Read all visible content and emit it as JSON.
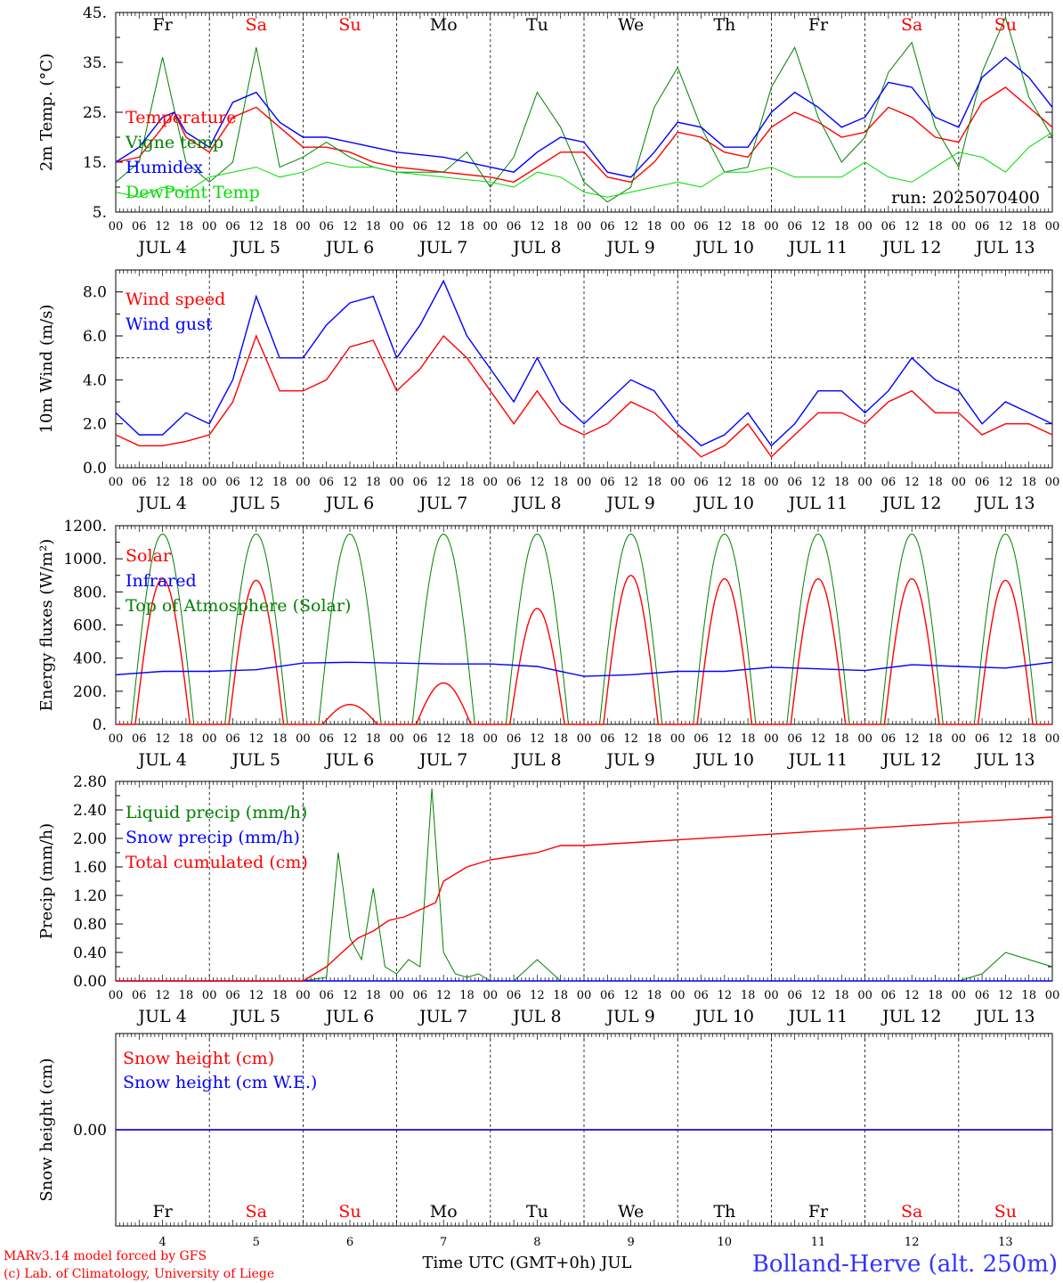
{
  "colors": {
    "red": "#ff0000",
    "blue": "#0000ff",
    "green": "#008000",
    "light_green": "#00dd00",
    "black": "#000000",
    "site_blue": "#3333ff"
  },
  "days": {
    "weekday": [
      "Fr",
      "Sa",
      "Su",
      "Mo",
      "Tu",
      "We",
      "Th",
      "Fr",
      "Sa",
      "Su"
    ],
    "weekend": [
      false,
      true,
      true,
      false,
      false,
      false,
      false,
      false,
      true,
      true
    ],
    "date_labels": [
      "JUL  4",
      "JUL  5",
      "JUL  6",
      "JUL  7",
      "JUL  8",
      "JUL  9",
      "JUL 10",
      "JUL 11",
      "JUL 12",
      "JUL 13"
    ],
    "day_numbers": [
      "4",
      "5",
      "6",
      "7",
      "8",
      "9",
      "10",
      "11",
      "12",
      "13"
    ],
    "hour_ticks": [
      "00",
      "06",
      "12",
      "18"
    ],
    "end_hour": "00"
  },
  "run_label": "run: 2025070400",
  "footer": {
    "model": "MARv3.14 model forced by GFS",
    "credit": "(c) Lab. of Climatology, University of Liege",
    "xlabel": "Time UTC (GMT+0h) JUL",
    "site": "Bolland-Herve (alt. 250m)"
  },
  "chart_data": [
    {
      "type": "line",
      "ylabel": "2m Temp. (°C)",
      "ylim": [
        5,
        45
      ],
      "yticks": [
        {
          "v": 5,
          "t": "5."
        },
        {
          "v": 15,
          "t": "15."
        },
        {
          "v": 25,
          "t": "25."
        },
        {
          "v": 35,
          "t": "35."
        },
        {
          "v": 45,
          "t": "45."
        }
      ],
      "x_unit": "hours since Jul 4 00 UTC",
      "series": [
        {
          "name": "Temperature",
          "color": "red",
          "x": [
            0,
            6,
            12,
            15,
            18,
            24,
            30,
            36,
            42,
            48,
            54,
            60,
            66,
            72,
            84,
            96,
            102,
            108,
            114,
            120,
            126,
            132,
            138,
            144,
            150,
            156,
            162,
            168,
            174,
            180,
            186,
            192,
            198,
            204,
            210,
            216,
            222,
            228,
            234,
            240
          ],
          "values": [
            15,
            16,
            22,
            25,
            20,
            17,
            24,
            26,
            22,
            18,
            18,
            17,
            15,
            14,
            13,
            12,
            11,
            14,
            17,
            17,
            12,
            11,
            15,
            21,
            20,
            17,
            16,
            22,
            25,
            23,
            20,
            21,
            26,
            24,
            20,
            19,
            27,
            30,
            26,
            22
          ]
        },
        {
          "name": "Vigne temp",
          "color": "green",
          "x": [
            0,
            6,
            12,
            18,
            24,
            30,
            36,
            42,
            48,
            54,
            60,
            66,
            72,
            84,
            90,
            96,
            102,
            108,
            114,
            120,
            126,
            132,
            138,
            144,
            150,
            156,
            162,
            168,
            174,
            180,
            186,
            192,
            198,
            204,
            210,
            216,
            222,
            228,
            234,
            240
          ],
          "values": [
            11,
            15,
            36,
            15,
            11,
            15,
            38,
            14,
            16,
            19,
            16,
            14,
            13,
            13,
            17,
            10,
            16,
            29,
            22,
            11,
            7,
            10,
            26,
            34,
            22,
            13,
            14,
            30,
            38,
            24,
            15,
            20,
            33,
            39,
            22,
            14,
            33,
            44,
            28,
            20
          ]
        },
        {
          "name": "Humidex",
          "color": "blue",
          "x": [
            0,
            6,
            12,
            15,
            18,
            24,
            30,
            36,
            42,
            48,
            54,
            60,
            66,
            72,
            84,
            96,
            102,
            108,
            114,
            120,
            126,
            132,
            138,
            144,
            150,
            156,
            162,
            168,
            174,
            180,
            186,
            192,
            198,
            204,
            210,
            216,
            222,
            228,
            234,
            240
          ],
          "values": [
            15,
            18,
            24,
            25,
            21,
            18,
            27,
            29,
            23,
            20,
            20,
            19,
            18,
            17,
            16,
            14,
            13,
            17,
            20,
            19,
            13,
            12,
            17,
            23,
            22,
            18,
            18,
            25,
            29,
            26,
            22,
            24,
            31,
            30,
            24,
            22,
            32,
            36,
            32,
            26
          ]
        },
        {
          "name": "DewPoint Temp",
          "color": "light_green",
          "x": [
            0,
            6,
            12,
            18,
            24,
            30,
            36,
            42,
            48,
            54,
            60,
            66,
            72,
            84,
            96,
            102,
            108,
            114,
            120,
            126,
            132,
            138,
            144,
            150,
            156,
            162,
            168,
            174,
            180,
            186,
            192,
            198,
            204,
            210,
            216,
            222,
            228,
            234,
            240
          ],
          "values": [
            9,
            8,
            10,
            9,
            12,
            13,
            14,
            12,
            13,
            15,
            14,
            14,
            13,
            12,
            11,
            10,
            13,
            12,
            9,
            8,
            9,
            10,
            11,
            10,
            13,
            13,
            14,
            12,
            12,
            12,
            15,
            12,
            11,
            14,
            17,
            16,
            13,
            18,
            21
          ]
        }
      ],
      "legend": [
        "Temperature",
        "Vigne temp",
        "Humidex",
        "DewPoint Temp"
      ]
    },
    {
      "type": "line",
      "ylabel": "10m Wind (m/s)",
      "ylim": [
        0,
        9
      ],
      "hline": 5,
      "yticks": [
        {
          "v": 0,
          "t": "0.0"
        },
        {
          "v": 2,
          "t": "2.0"
        },
        {
          "v": 4,
          "t": "4.0"
        },
        {
          "v": 6,
          "t": "6.0"
        },
        {
          "v": 8,
          "t": "8.0"
        }
      ],
      "series": [
        {
          "name": "Wind speed",
          "color": "red",
          "x": [
            0,
            6,
            12,
            18,
            24,
            30,
            36,
            42,
            48,
            54,
            60,
            66,
            72,
            78,
            84,
            90,
            96,
            102,
            108,
            114,
            120,
            126,
            132,
            138,
            144,
            150,
            156,
            162,
            168,
            174,
            180,
            186,
            192,
            198,
            204,
            210,
            216,
            222,
            228,
            234,
            240
          ],
          "values": [
            1.5,
            1.0,
            1.0,
            1.2,
            1.5,
            3.0,
            6.0,
            3.5,
            3.5,
            4.0,
            5.5,
            5.8,
            3.5,
            4.5,
            6.0,
            5.0,
            3.5,
            2.0,
            3.5,
            2.0,
            1.5,
            2.0,
            3.0,
            2.5,
            1.5,
            0.5,
            1.0,
            2.0,
            0.5,
            1.5,
            2.5,
            2.5,
            2.0,
            3.0,
            3.5,
            2.5,
            2.5,
            1.5,
            2.0,
            2.0,
            1.5
          ]
        },
        {
          "name": "Wind gust",
          "color": "blue",
          "x": [
            0,
            6,
            12,
            18,
            24,
            30,
            36,
            42,
            48,
            54,
            60,
            66,
            72,
            78,
            84,
            90,
            96,
            102,
            108,
            114,
            120,
            126,
            132,
            138,
            144,
            150,
            156,
            162,
            168,
            174,
            180,
            186,
            192,
            198,
            204,
            210,
            216,
            222,
            228,
            234,
            240
          ],
          "values": [
            2.5,
            1.5,
            1.5,
            2.5,
            2.0,
            4.0,
            7.8,
            5.0,
            5.0,
            6.5,
            7.5,
            7.8,
            5.0,
            6.5,
            8.5,
            6.0,
            4.5,
            3.0,
            5.0,
            3.0,
            2.0,
            3.0,
            4.0,
            3.5,
            2.0,
            1.0,
            1.5,
            2.5,
            1.0,
            2.0,
            3.5,
            3.5,
            2.5,
            3.5,
            5.0,
            4.0,
            3.5,
            2.0,
            3.0,
            2.5,
            2.0
          ]
        }
      ],
      "legend": [
        "Wind speed",
        "Wind gust"
      ]
    },
    {
      "type": "line",
      "ylabel": "Energy fluxes (W/m²)",
      "ylim": [
        0,
        1200
      ],
      "yticks": [
        {
          "v": 0,
          "t": "0."
        },
        {
          "v": 200,
          "t": "200."
        },
        {
          "v": 400,
          "t": "400."
        },
        {
          "v": 600,
          "t": "600."
        },
        {
          "v": 800,
          "t": "800."
        },
        {
          "v": 1000,
          "t": "1000."
        },
        {
          "v": 1200,
          "t": "1200."
        }
      ],
      "toa_peak": 1150,
      "solar_peaks": [
        880,
        870,
        120,
        250,
        700,
        900,
        880,
        880,
        880,
        870
      ],
      "series": [
        {
          "name": "Infrared",
          "color": "blue",
          "x": [
            0,
            12,
            24,
            36,
            48,
            60,
            72,
            84,
            96,
            108,
            120,
            132,
            144,
            156,
            168,
            180,
            192,
            204,
            216,
            228,
            240
          ],
          "values": [
            300,
            320,
            320,
            330,
            370,
            375,
            370,
            365,
            365,
            350,
            290,
            300,
            320,
            320,
            345,
            335,
            325,
            360,
            350,
            340,
            375
          ]
        }
      ],
      "legend": [
        "Solar",
        "Infrared",
        "Top of Atmosphere (Solar)"
      ]
    },
    {
      "type": "line",
      "ylabel": "Precip (mm/h)",
      "ylim": [
        0,
        2.8
      ],
      "yticks": [
        {
          "v": 0,
          "t": "0.00"
        },
        {
          "v": 0.4,
          "t": "0.40"
        },
        {
          "v": 0.8,
          "t": "0.80"
        },
        {
          "v": 1.2,
          "t": "1.20"
        },
        {
          "v": 1.6,
          "t": "1.60"
        },
        {
          "v": 2.0,
          "t": "2.00"
        },
        {
          "v": 2.4,
          "t": "2.40"
        },
        {
          "v": 2.8,
          "t": "2.80"
        }
      ],
      "series": [
        {
          "name": "Liquid precip (mm/h)",
          "color": "green",
          "x": [
            0,
            48,
            54,
            57,
            60,
            63,
            66,
            69,
            72,
            75,
            78,
            81,
            84,
            87,
            90,
            93,
            96,
            99,
            102,
            108,
            114,
            120,
            216,
            222,
            228,
            234,
            240
          ],
          "values": [
            0,
            0,
            0.05,
            1.8,
            0.6,
            0.3,
            1.3,
            0.2,
            0.1,
            0.3,
            0.2,
            2.7,
            0.4,
            0.1,
            0.05,
            0.1,
            0,
            0,
            0,
            0.3,
            0,
            0,
            0,
            0.1,
            0.4,
            0.3,
            0.2
          ]
        },
        {
          "name": "Snow precip (mm/h)",
          "color": "blue",
          "x": [
            0,
            240
          ],
          "values": [
            0,
            0
          ]
        },
        {
          "name": "Total cumulated (cm)",
          "color": "red",
          "x": [
            0,
            48,
            54,
            58,
            62,
            66,
            70,
            74,
            78,
            82,
            84,
            90,
            96,
            102,
            108,
            114,
            120,
            240
          ],
          "values": [
            0,
            0,
            0.2,
            0.4,
            0.6,
            0.7,
            0.85,
            0.9,
            1.0,
            1.1,
            1.4,
            1.6,
            1.7,
            1.75,
            1.8,
            1.9,
            1.9,
            2.3
          ]
        }
      ],
      "legend": [
        "Liquid precip (mm/h)",
        "Snow precip (mm/h)",
        "Total cumulated (cm)"
      ]
    },
    {
      "type": "line",
      "ylabel": "Snow height (cm)",
      "ylim": [
        -1,
        1
      ],
      "yticks": [
        {
          "v": 0,
          "t": "0.00"
        }
      ],
      "series": [
        {
          "name": "Snow height (cm)",
          "color": "red",
          "x": [
            0,
            240
          ],
          "values": [
            0,
            0
          ]
        },
        {
          "name": "Snow height (cm W.E.)",
          "color": "blue",
          "x": [
            0,
            240
          ],
          "values": [
            0,
            0
          ]
        }
      ],
      "legend": [
        "Snow height (cm)",
        "Snow height (cm W.E.)"
      ]
    }
  ]
}
